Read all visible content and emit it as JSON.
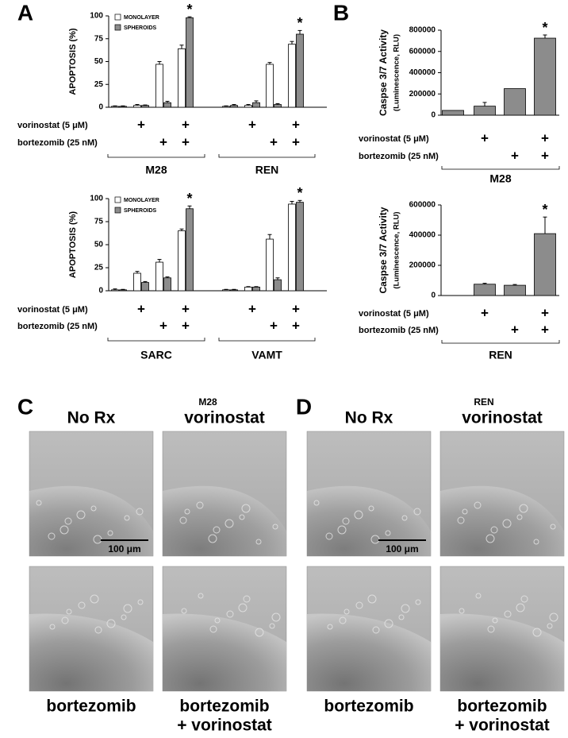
{
  "panel_labels": [
    "A",
    "B",
    "C",
    "D"
  ],
  "chart_data": [
    {
      "type": "bar",
      "ylabel": "APOPTOSIS (%)",
      "ylim": [
        0,
        100
      ],
      "yticks": [
        0,
        25,
        50,
        75,
        100
      ],
      "legend": "upper left",
      "categories": [
        null,
        null,
        null,
        null,
        null,
        null,
        null,
        null
      ],
      "series": [
        {
          "name": "MONOLAYER",
          "color": "#ffffff",
          "values": [
            1,
            2,
            47,
            64,
            1,
            2,
            47,
            69
          ],
          "errors": [
            0.5,
            1,
            3,
            4,
            0.5,
            1,
            2,
            3
          ]
        },
        {
          "name": "SPHEROIDS",
          "color": "#8c8c8c",
          "values": [
            1,
            2,
            5,
            98,
            2,
            5,
            3,
            80
          ],
          "errors": [
            0.5,
            0.5,
            1.5,
            1,
            1,
            2,
            1,
            4
          ]
        }
      ],
      "significance": [
        null,
        null,
        null,
        "*",
        null,
        null,
        null,
        "*"
      ],
      "treatments": [
        {
          "label": "vorinostat (5 μM)",
          "marks": [
            null,
            "+",
            null,
            "+",
            null,
            "+",
            null,
            "+"
          ]
        },
        {
          "label": "bortezomib (25 nM)",
          "marks": [
            null,
            null,
            "+",
            "+",
            null,
            null,
            "+",
            "+"
          ]
        }
      ],
      "groups": [
        "M28",
        "REN"
      ]
    },
    {
      "type": "bar",
      "ylabel": "APOPTOSIS (%)",
      "ylim": [
        0,
        100
      ],
      "yticks": [
        0,
        25,
        50,
        75,
        100
      ],
      "legend": "upper left",
      "categories": [
        null,
        null,
        null,
        null,
        null,
        null,
        null,
        null
      ],
      "series": [
        {
          "name": "MONOLAYER",
          "color": "#ffffff",
          "values": [
            1,
            19,
            31,
            65,
            1,
            4,
            56,
            94
          ],
          "errors": [
            1,
            2,
            3,
            2,
            0.5,
            0.5,
            5,
            3
          ]
        },
        {
          "name": "SPHEROIDS",
          "color": "#8c8c8c",
          "values": [
            1,
            9,
            14,
            89,
            1,
            4,
            12,
            96
          ],
          "errors": [
            0.5,
            1,
            1,
            3,
            0.5,
            0.5,
            2,
            2
          ]
        }
      ],
      "significance": [
        null,
        null,
        null,
        "*",
        null,
        null,
        null,
        "*"
      ],
      "treatments": [
        {
          "label": "vorinostat (5 μM)",
          "marks": [
            null,
            "+",
            null,
            "+",
            null,
            "+",
            null,
            "+"
          ]
        },
        {
          "label": "bortezomib (25 nM)",
          "marks": [
            null,
            null,
            "+",
            "+",
            null,
            null,
            "+",
            "+"
          ]
        }
      ],
      "groups": [
        "SARC",
        "VAMT"
      ]
    },
    {
      "type": "bar",
      "ylabel": "Caspse 3/7 Activity",
      "ylabel2": "(Luminescence, RLU)",
      "ylim": [
        0,
        800000
      ],
      "yticks": [
        0,
        200000,
        400000,
        600000,
        800000
      ],
      "categories": [
        null,
        null,
        null,
        null
      ],
      "color": "#8c8c8c",
      "values": [
        45000,
        85000,
        250000,
        725000
      ],
      "errors": [
        null,
        35000,
        null,
        30000
      ],
      "significance": [
        null,
        null,
        null,
        "*"
      ],
      "treatments": [
        {
          "label": "vorinostat (5 μM)",
          "marks": [
            null,
            "+",
            null,
            "+"
          ]
        },
        {
          "label": "bortezomib (25 nM)",
          "marks": [
            null,
            null,
            "+",
            "+"
          ]
        }
      ],
      "groups": [
        "M28"
      ]
    },
    {
      "type": "bar",
      "ylabel": "Caspse 3/7 Activity",
      "ylabel2": "(Luminescence, RLU)",
      "ylim": [
        0,
        600000
      ],
      "yticks": [
        0,
        200000,
        400000,
        600000
      ],
      "categories": [
        null,
        null,
        null,
        null
      ],
      "color": "#8c8c8c",
      "values": [
        0,
        75000,
        68000,
        410000
      ],
      "errors": [
        null,
        6000,
        5000,
        110000
      ],
      "significance": [
        null,
        null,
        null,
        "*"
      ],
      "treatments": [
        {
          "label": "vorinostat (5 μM)",
          "marks": [
            null,
            "+",
            null,
            "+"
          ]
        },
        {
          "label": "bortezomib (25 nM)",
          "marks": [
            null,
            null,
            "+",
            "+"
          ]
        }
      ],
      "groups": [
        "REN"
      ]
    }
  ],
  "micrographs": [
    {
      "title": "M28",
      "labels": [
        [
          "No Rx"
        ],
        [
          "vorinostat"
        ],
        [
          "bortezomib"
        ],
        [
          "bortezomib",
          "+ vorinostat"
        ]
      ],
      "scale_bar": "100 μm"
    },
    {
      "title": "REN",
      "labels": [
        [
          "No Rx"
        ],
        [
          "vorinostat"
        ],
        [
          "bortezomib"
        ],
        [
          "bortezomib",
          "+ vorinostat"
        ]
      ],
      "scale_bar": "100 μm"
    }
  ]
}
